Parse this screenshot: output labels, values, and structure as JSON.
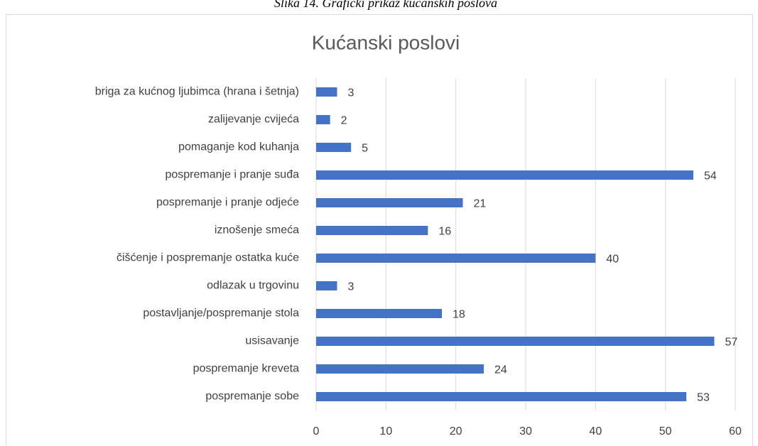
{
  "caption": "Slika 14. Grafički prikaz kućanskih poslova",
  "chart_data": {
    "type": "bar",
    "orientation": "horizontal",
    "title": "Kućanski poslovi",
    "categories": [
      "briga za kućnog ljubimca (hrana i šetnja)",
      "zalijevanje cvijeća",
      "pomaganje kod kuhanja",
      "pospremanje i pranje suđa",
      "pospremanje i pranje odjeće",
      "iznošenje smeća",
      "čišćenje i pospremanje ostatka kuće",
      "odlazak u trgovinu",
      "postavljanje/pospremanje stola",
      "usisavanje",
      "pospremanje kreveta",
      "pospremanje sobe"
    ],
    "values": [
      3,
      2,
      5,
      54,
      21,
      16,
      40,
      3,
      18,
      57,
      24,
      53
    ],
    "color": "#4472c4",
    "xlim": [
      0,
      60
    ],
    "xticks": [
      0,
      10,
      20,
      30,
      40,
      50,
      60
    ],
    "grid": true
  }
}
